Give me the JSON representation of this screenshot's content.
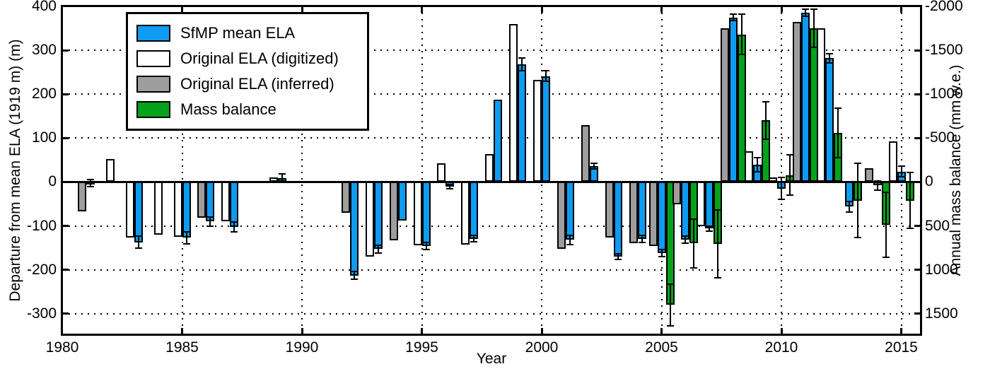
{
  "chart_data": {
    "type": "bar",
    "title": "",
    "xlabel": "Year",
    "ylabel_left": "Departure from mean ELA (1919 m) (m)",
    "ylabel_right": "Annual mass balance (mm w.e.)",
    "axes": {
      "x_ticks": [
        1980,
        1985,
        1990,
        1995,
        2000,
        2005,
        2010,
        2015
      ],
      "y_ticks_left": [
        400,
        300,
        200,
        100,
        0,
        -100,
        -200,
        -300
      ],
      "y_ticks_right": [
        -2000,
        -1500,
        -1000,
        -500,
        0,
        500,
        1000,
        1500
      ],
      "ylim_left": [
        -347,
        400
      ],
      "xlim": [
        1980,
        2015.8
      ],
      "grid": "dotted",
      "mb_per_m": -5
    },
    "legend": {
      "position": "upper-left",
      "items": [
        {
          "key": "sfmp",
          "label": "SfMP mean ELA",
          "color": "#0E9BF2"
        },
        {
          "key": "digitized",
          "label": "Original ELA (digitized)",
          "color": "#FFFFFF"
        },
        {
          "key": "inferred",
          "label": "Original ELA (inferred)",
          "color": "#9E9E9E"
        },
        {
          "key": "mb",
          "label": "Mass balance",
          "color": "#02A31B"
        }
      ]
    },
    "years": [
      {
        "year": 1981,
        "inferred": -67,
        "sfmp": -3,
        "sfmp_err": 8
      },
      {
        "year": 1982,
        "digitized": 52
      },
      {
        "year": 1983,
        "digitized": -127,
        "sfmp": -137,
        "sfmp_err": 14
      },
      {
        "year": 1984,
        "digitized": -120
      },
      {
        "year": 1985,
        "digitized": -125,
        "sfmp": -127,
        "sfmp_err": 14
      },
      {
        "year": 1986,
        "inferred": -82,
        "sfmp": -90,
        "sfmp_err": 11
      },
      {
        "year": 1987,
        "digitized": -90,
        "sfmp": -102,
        "sfmp_err": 11
      },
      {
        "year": 1989,
        "digitized": 10,
        "sfmp": 9,
        "sfmp_err": 10
      },
      {
        "year": 1992,
        "inferred": -70,
        "sfmp": -213,
        "sfmp_err": 9
      },
      {
        "year": 1993,
        "digitized": -170,
        "sfmp": -153,
        "sfmp_err": 9
      },
      {
        "year": 1994,
        "inferred": -133,
        "sfmp": -88
      },
      {
        "year": 1995,
        "digitized": -144,
        "sfmp": -146,
        "sfmp_err": 8
      },
      {
        "year": 1996,
        "digitized": 43,
        "sfmp": -10,
        "sfmp_err": 5
      },
      {
        "year": 1997,
        "digitized": -142,
        "sfmp": -129,
        "sfmp_err": 7
      },
      {
        "year": 1998,
        "digitized": 64,
        "sfmp": 188
      },
      {
        "year": 1999,
        "digitized": 360,
        "sfmp": 268,
        "sfmp_err": 14
      },
      {
        "year": 2000,
        "digitized": 233,
        "sfmp": 241,
        "sfmp_err": 12
      },
      {
        "year": 2001,
        "inferred": -153,
        "sfmp": -132,
        "sfmp_err": 10
      },
      {
        "year": 2002,
        "inferred": 130,
        "sfmp": 36,
        "sfmp_err": 7
      },
      {
        "year": 2003,
        "inferred": -127,
        "sfmp": -170,
        "sfmp_err": 7
      },
      {
        "year": 2004,
        "inferred": -140,
        "sfmp": -130,
        "sfmp_err": 8
      },
      {
        "year": 2005,
        "inferred": -146,
        "sfmp": -162,
        "sfmp_err": 8,
        "mb": 1400,
        "mb_err": 240
      },
      {
        "year": 2006,
        "inferred": -50,
        "sfmp": -132,
        "sfmp_err": 8,
        "mb": 700,
        "mb_err": 280
      },
      {
        "year": 2007,
        "digitized": -101,
        "sfmp": -106,
        "sfmp_err": 6,
        "mb": 705,
        "mb_err": 390
      },
      {
        "year": 2008,
        "inferred": 350,
        "sfmp": 375,
        "sfmp_err": 8,
        "mb": -1680,
        "mb_err": 230
      },
      {
        "year": 2009,
        "digitized": 70,
        "sfmp": 39,
        "sfmp_err": 16,
        "mb": -700,
        "mb_err": 210
      },
      {
        "year": 2010,
        "digitized": 11,
        "sfmp": -15,
        "sfmp_err": 25,
        "mb": -80,
        "mb_err": 230
      },
      {
        "year": 2011,
        "inferred": 365,
        "sfmp": 385,
        "sfmp_err": 8,
        "mb": -1750,
        "mb_err": 220
      },
      {
        "year": 2012,
        "digitized": 350,
        "sfmp": 282,
        "sfmp_err": 10,
        "mb": -560,
        "mb_err": 280
      },
      {
        "year": 2013,
        "sfmp": -56,
        "sfmp_err": 12,
        "mb": 210,
        "mb_err": 420
      },
      {
        "year": 2014,
        "inferred": 31,
        "sfmp": -8,
        "sfmp_err": 10,
        "mb": 485,
        "mb_err": 370
      },
      {
        "year": 2015,
        "digitized": 92,
        "sfmp": 24,
        "sfmp_err": 12,
        "mb": 210,
        "mb_err": 320
      }
    ]
  }
}
